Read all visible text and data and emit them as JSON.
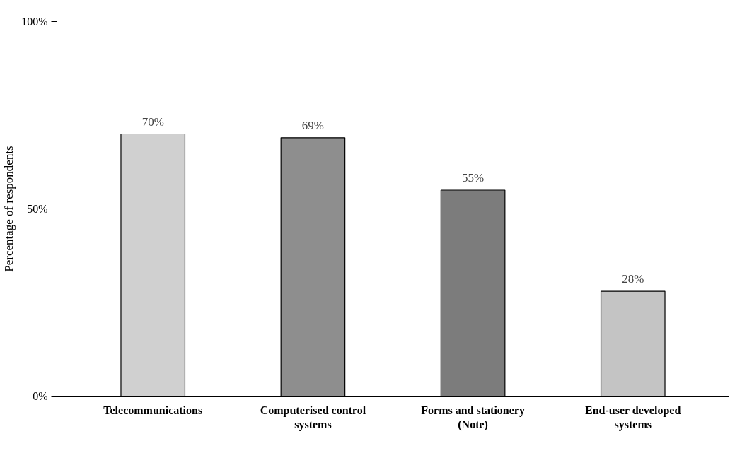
{
  "chart_data": {
    "type": "bar",
    "ylabel": "Percentage of respondents",
    "categories": [
      "Telecommunications",
      "Computerised control systems",
      "Forms and stationery (Note)",
      "End-user developed systems"
    ],
    "values": [
      70,
      69,
      55,
      28
    ],
    "colors": [
      "#d0d0d0",
      "#8e8e8e",
      "#7c7c7c",
      "#c4c4c4"
    ],
    "value_labels": [
      "70%",
      "69%",
      "55%",
      "28%"
    ],
    "ylim": [
      0,
      100
    ],
    "yticks": [
      {
        "value": 0,
        "label": "0%"
      },
      {
        "value": 50,
        "label": "50%"
      },
      {
        "value": 100,
        "label": "100%"
      }
    ],
    "grid": false
  }
}
